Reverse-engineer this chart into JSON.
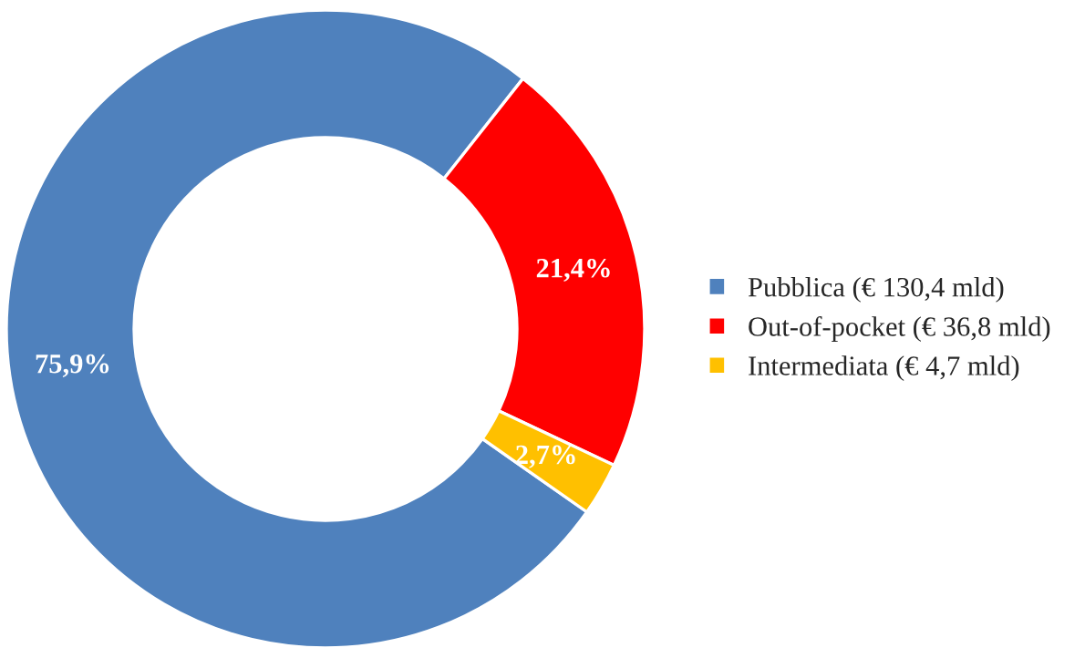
{
  "chart_data": {
    "type": "donut",
    "categories": [
      "Pubblica (€ 130,4 mld)",
      "Out-of-pocket (€ 36,8 mld)",
      "Intermediata (€ 4,7 mld)"
    ],
    "values": [
      75.9,
      21.4,
      2.7
    ],
    "colors": [
      "#4f81bd",
      "#ff0000",
      "#ffc000"
    ],
    "value_labels": [
      "75,9%",
      "21,4%",
      "2,7%"
    ],
    "legend": "right"
  }
}
